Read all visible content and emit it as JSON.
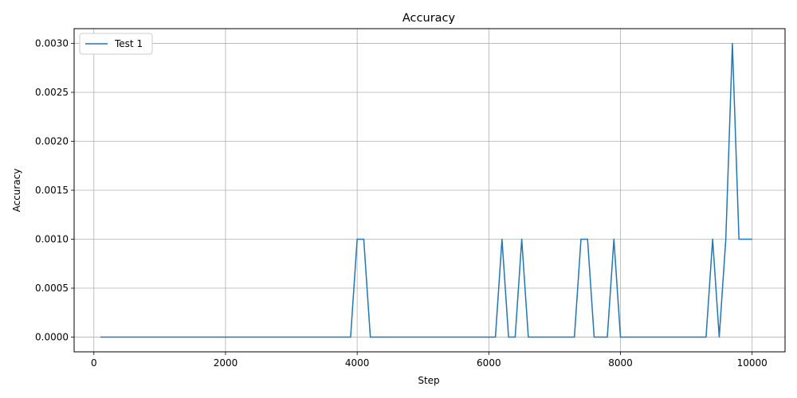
{
  "chart_data": {
    "type": "line",
    "title": "Accuracy",
    "xlabel": "Step",
    "ylabel": "Accuracy",
    "xlim": [
      -300,
      10500
    ],
    "ylim": [
      -0.00015,
      0.00315
    ],
    "xticks": [
      0,
      2000,
      4000,
      6000,
      8000,
      10000
    ],
    "xtick_labels": [
      "0",
      "2000",
      "4000",
      "6000",
      "8000",
      "10000"
    ],
    "yticks": [
      0,
      0.0005,
      0.001,
      0.0015,
      0.002,
      0.0025,
      0.003
    ],
    "ytick_labels": [
      "0.0000",
      "0.0005",
      "0.0010",
      "0.0015",
      "0.0020",
      "0.0025",
      "0.0030"
    ],
    "grid": true,
    "legend_position": "top-left",
    "series": [
      {
        "name": "Test 1",
        "color": "#1f77b4",
        "x": [
          100,
          200,
          300,
          400,
          500,
          600,
          700,
          800,
          900,
          1000,
          1100,
          1200,
          1300,
          1400,
          1500,
          1600,
          1700,
          1800,
          1900,
          2000,
          2100,
          2200,
          2300,
          2400,
          2500,
          2600,
          2700,
          2800,
          2900,
          3000,
          3100,
          3200,
          3300,
          3400,
          3500,
          3600,
          3700,
          3800,
          3900,
          4000,
          4100,
          4200,
          4300,
          4400,
          4500,
          4600,
          4700,
          4800,
          4900,
          5000,
          5100,
          5200,
          5300,
          5400,
          5500,
          5600,
          5700,
          5800,
          5900,
          6000,
          6100,
          6200,
          6300,
          6400,
          6500,
          6600,
          6700,
          6800,
          6900,
          7000,
          7100,
          7200,
          7300,
          7400,
          7500,
          7600,
          7700,
          7800,
          7900,
          8000,
          8100,
          8200,
          8300,
          8400,
          8500,
          8600,
          8700,
          8800,
          8900,
          9000,
          9100,
          9200,
          9300,
          9400,
          9500,
          9600,
          9700,
          9800,
          9900,
          10000
        ],
        "y": [
          0,
          0,
          0,
          0,
          0,
          0,
          0,
          0,
          0,
          0,
          0,
          0,
          0,
          0,
          0,
          0,
          0,
          0,
          0,
          0,
          0,
          0,
          0,
          0,
          0,
          0,
          0,
          0,
          0,
          0,
          0,
          0,
          0,
          0,
          0,
          0,
          0,
          0,
          0,
          0.001,
          0.001,
          0,
          0,
          0,
          0,
          0,
          0,
          0,
          0,
          0,
          0,
          0,
          0,
          0,
          0,
          0,
          0,
          0,
          0,
          0,
          0,
          0.001,
          0,
          0,
          0.001,
          0,
          0,
          0,
          0,
          0,
          0,
          0,
          0,
          0.001,
          0.001,
          0,
          0,
          0,
          0.001,
          0,
          0,
          0,
          0,
          0,
          0,
          0,
          0,
          0,
          0,
          0,
          0,
          0,
          0,
          0.001,
          0,
          0.001,
          0.003,
          0.001,
          0.001,
          0.001
        ]
      }
    ]
  }
}
